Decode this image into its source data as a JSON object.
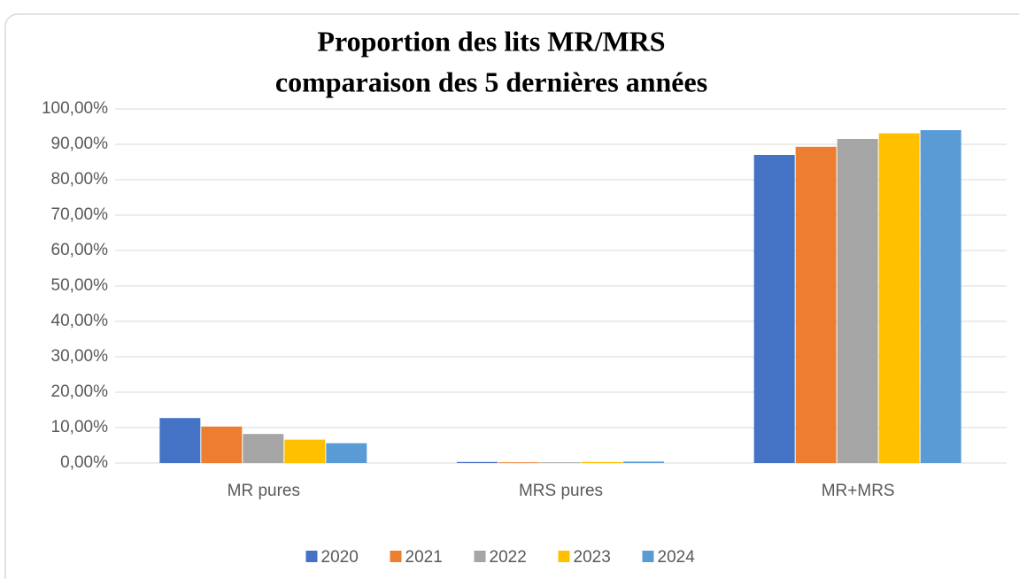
{
  "chart_data": {
    "type": "bar",
    "title": [
      "Proportion des  lits MR/MRS",
      "comparaison des 5 dernières années"
    ],
    "categories": [
      "MR pures",
      "MRS pures",
      "MR+MRS"
    ],
    "series": [
      {
        "name": "2020",
        "color": "#4472c4",
        "values": [
          12.7,
          0.3,
          87.0
        ]
      },
      {
        "name": "2021",
        "color": "#ed7d31",
        "values": [
          10.3,
          0.2,
          89.3
        ]
      },
      {
        "name": "2022",
        "color": "#a5a5a5",
        "values": [
          8.2,
          0.2,
          91.5
        ]
      },
      {
        "name": "2023",
        "color": "#ffc000",
        "values": [
          6.6,
          0.3,
          93.1
        ]
      },
      {
        "name": "2024",
        "color": "#5b9bd5",
        "values": [
          5.6,
          0.4,
          94.0
        ]
      }
    ],
    "ylim": [
      0,
      100
    ],
    "yticks": [
      {
        "value": 0,
        "label": "0,00%"
      },
      {
        "value": 10,
        "label": "10,00%"
      },
      {
        "value": 20,
        "label": "20,00%"
      },
      {
        "value": 30,
        "label": "30,00%"
      },
      {
        "value": 40,
        "label": "40,00%"
      },
      {
        "value": 50,
        "label": "50,00%"
      },
      {
        "value": 60,
        "label": "60,00%"
      },
      {
        "value": 70,
        "label": "70,00%"
      },
      {
        "value": 80,
        "label": "80,00%"
      },
      {
        "value": 90,
        "label": "90,00%"
      },
      {
        "value": 100,
        "label": "100,00%"
      }
    ],
    "grid": true,
    "legend": "bottom"
  }
}
